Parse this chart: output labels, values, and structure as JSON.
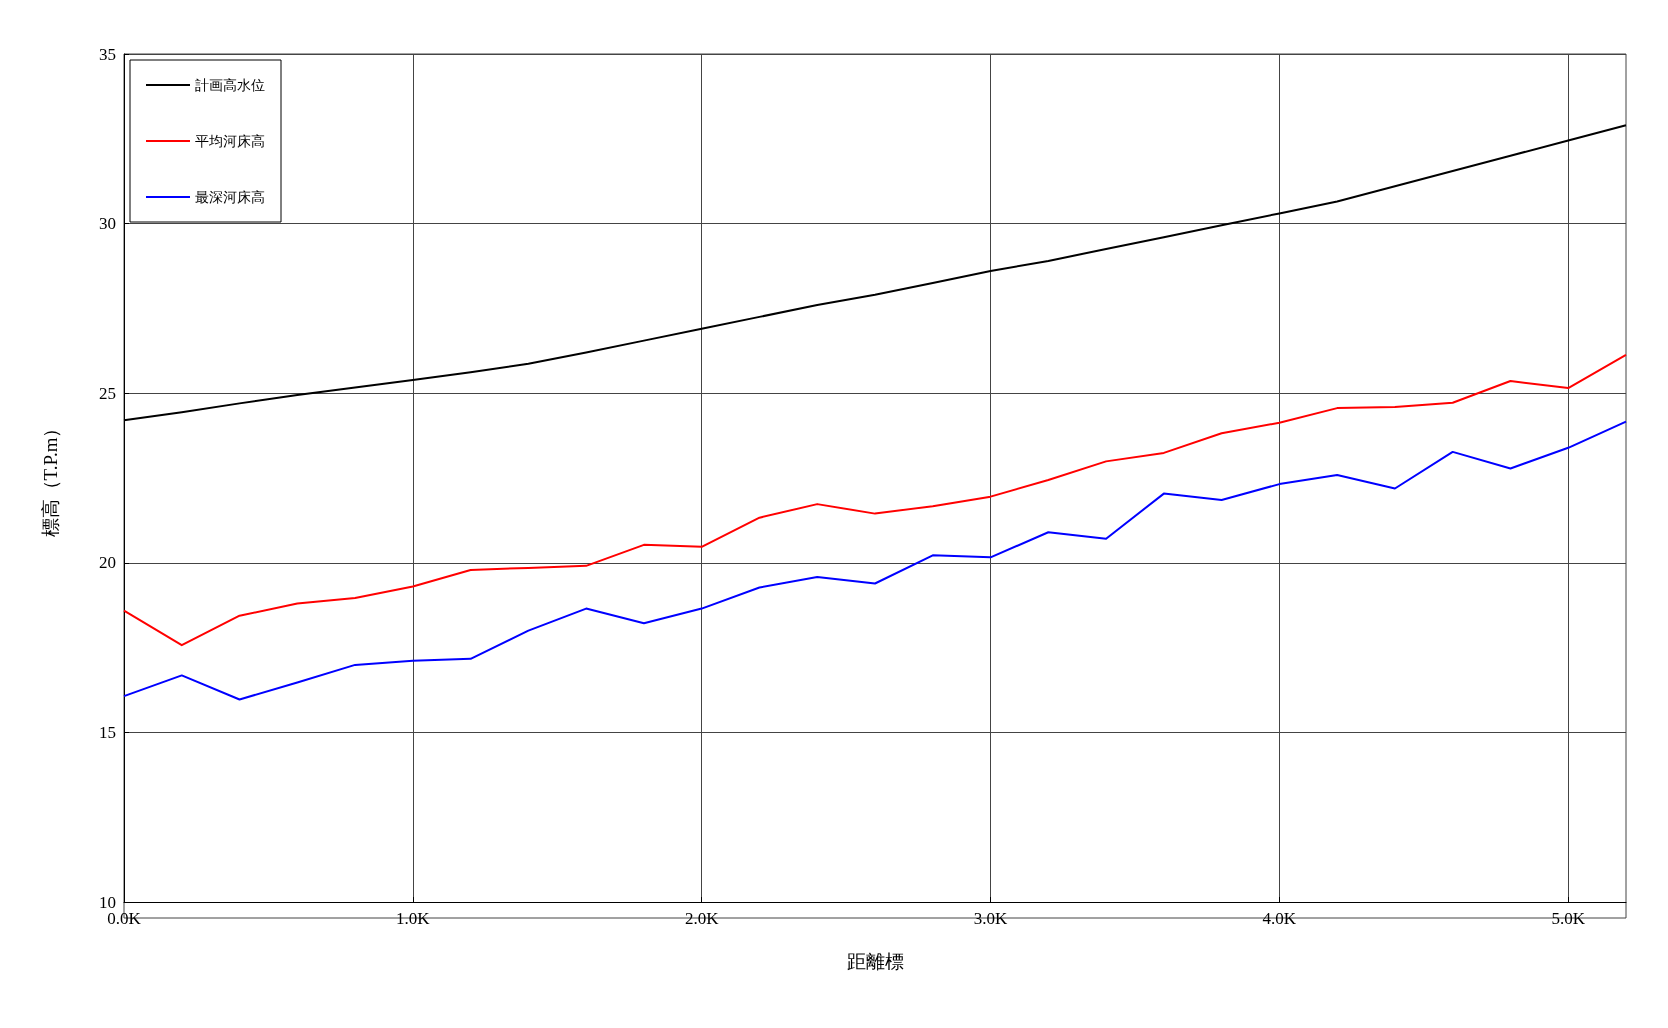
{
  "chart_data": {
    "type": "line",
    "xlabel": "距離標",
    "ylabel": "標高（T.P.m）",
    "x": [
      0,
      0.2,
      0.4,
      0.6,
      0.8,
      1.0,
      1.2,
      1.4,
      1.6,
      1.8,
      2.0,
      2.2,
      2.4,
      2.6,
      2.8,
      3.0,
      3.2,
      3.4,
      3.6,
      3.8,
      4.0,
      4.2,
      4.4,
      4.6,
      4.8,
      5.0,
      5.2
    ],
    "series": [
      {
        "name": "計画高水位",
        "color": "#000000",
        "values": [
          24.2,
          24.44,
          24.7,
          24.95,
          25.17,
          25.39,
          25.62,
          25.87,
          26.2,
          26.55,
          26.9,
          27.25,
          27.6,
          27.9,
          28.25,
          28.6,
          28.9,
          29.25,
          29.6,
          29.95,
          30.3,
          30.65,
          31.1,
          31.55,
          32.0,
          32.45,
          32.9
        ]
      },
      {
        "name": "平均河床高",
        "color": "#ff0000",
        "values": [
          18.59,
          17.57,
          18.44,
          18.8,
          18.96,
          19.3,
          19.79,
          19.85,
          19.91,
          20.53,
          20.47,
          21.33,
          21.73,
          21.45,
          21.67,
          21.95,
          22.44,
          22.99,
          23.24,
          23.82,
          24.13,
          24.56,
          24.59,
          24.72,
          25.36,
          25.15,
          26.13
        ]
      },
      {
        "name": "最深河床高",
        "color": "#0000ff",
        "values": [
          16.07,
          16.68,
          15.97,
          16.47,
          16.99,
          17.11,
          17.17,
          18.0,
          18.65,
          18.22,
          18.65,
          19.27,
          19.58,
          19.39,
          20.22,
          20.16,
          20.9,
          20.71,
          22.04,
          21.85,
          22.32,
          22.59,
          22.19,
          23.27,
          22.78,
          23.39,
          24.16
        ]
      }
    ],
    "xlim": [
      0,
      5.2
    ],
    "xticks": [
      {
        "value": 0,
        "label": "0.0K"
      },
      {
        "value": 1,
        "label": "1.0K"
      },
      {
        "value": 2,
        "label": "2.0K"
      },
      {
        "value": 3,
        "label": "3.0K"
      },
      {
        "value": 4,
        "label": "4.0K"
      },
      {
        "value": 5,
        "label": "5.0K"
      }
    ],
    "ylim": [
      10,
      35
    ],
    "yticks": [
      10,
      15,
      20,
      25,
      30,
      35
    ],
    "grid": true,
    "legend": "top left",
    "marker": "none",
    "line_style": "solid"
  }
}
